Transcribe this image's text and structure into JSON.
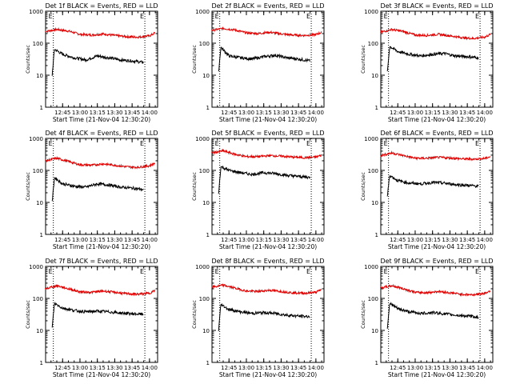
{
  "window": {
    "background": "#ffffff"
  },
  "colors": {
    "events": "#000000",
    "lld": "#e00000",
    "axis": "#000000"
  },
  "chart_data": [
    {
      "type": "line",
      "title": "Det 1f BLACK = Events, RED = LLD",
      "xlabel": "Start Time (21-Nov-04 12:30:20)",
      "ylabel": "Counts/sec",
      "xlim": [
        "12:30:20",
        "14:07:00"
      ],
      "ylim": [
        1,
        1000
      ],
      "yscale": "log",
      "x_ticks": [
        "12:45",
        "13:00",
        "13:15",
        "13:30",
        "13:45",
        "14:00"
      ],
      "y_ticks": [
        "1",
        "10",
        "100",
        "1000"
      ],
      "markers": [
        {
          "label": "E",
          "time": "12:37"
        },
        {
          "label": "E",
          "time": "13:56"
        }
      ],
      "series": [
        {
          "name": "LLD",
          "color": "#e00000",
          "x": [
            "12:30",
            "12:40",
            "12:50",
            "13:00",
            "13:10",
            "13:20",
            "13:30",
            "13:40",
            "13:50",
            "14:00",
            "14:05"
          ],
          "values": [
            230,
            270,
            240,
            190,
            180,
            195,
            175,
            160,
            155,
            170,
            210
          ]
        },
        {
          "name": "Events",
          "color": "#000000",
          "x": [
            "12:36",
            "12:38",
            "12:45",
            "12:55",
            "13:05",
            "13:15",
            "13:25",
            "13:35",
            "13:45",
            "13:55"
          ],
          "values": [
            10,
            65,
            45,
            35,
            30,
            40,
            35,
            30,
            28,
            25
          ]
        }
      ]
    },
    {
      "type": "line",
      "title": "Det 2f BLACK = Events, RED = LLD",
      "xlabel": "Start Time (21-Nov-04 12:30:20)",
      "ylabel": "Counts/sec",
      "xlim": [
        "12:30:20",
        "14:07:00"
      ],
      "ylim": [
        1,
        1000
      ],
      "yscale": "log",
      "x_ticks": [
        "12:45",
        "13:00",
        "13:15",
        "13:30",
        "13:45",
        "14:00"
      ],
      "y_ticks": [
        "1",
        "10",
        "100",
        "1000"
      ],
      "markers": [
        {
          "label": "E",
          "time": "12:37"
        },
        {
          "label": "E",
          "time": "13:56"
        }
      ],
      "series": [
        {
          "name": "LLD",
          "color": "#e00000",
          "x": [
            "12:30",
            "12:40",
            "12:50",
            "13:00",
            "13:10",
            "13:20",
            "13:30",
            "13:40",
            "13:50",
            "14:00",
            "14:05"
          ],
          "values": [
            250,
            290,
            260,
            210,
            200,
            220,
            195,
            180,
            175,
            185,
            220
          ]
        },
        {
          "name": "Events",
          "color": "#000000",
          "x": [
            "12:36",
            "12:38",
            "12:45",
            "12:55",
            "13:05",
            "13:15",
            "13:25",
            "13:35",
            "13:45",
            "13:55"
          ],
          "values": [
            12,
            75,
            40,
            35,
            32,
            38,
            42,
            35,
            32,
            28
          ]
        }
      ]
    },
    {
      "type": "line",
      "title": "Det 3f BLACK = Events, RED = LLD",
      "xlabel": "Start Time (21-Nov-04 12:30:20)",
      "ylabel": "Counts/sec",
      "xlim": [
        "12:30:20",
        "14:07:00"
      ],
      "ylim": [
        1,
        1000
      ],
      "yscale": "log",
      "x_ticks": [
        "12:45",
        "13:00",
        "13:15",
        "13:30",
        "13:45",
        "14:00"
      ],
      "y_ticks": [
        "1",
        "10",
        "100",
        "1000"
      ],
      "markers": [
        {
          "label": "E",
          "time": "12:37"
        },
        {
          "label": "E",
          "time": "13:56"
        }
      ],
      "series": [
        {
          "name": "LLD",
          "color": "#e00000",
          "x": [
            "12:30",
            "12:40",
            "12:50",
            "13:00",
            "13:10",
            "13:20",
            "13:30",
            "13:40",
            "13:50",
            "14:00",
            "14:05"
          ],
          "values": [
            220,
            270,
            230,
            180,
            175,
            190,
            170,
            150,
            140,
            155,
            190
          ]
        },
        {
          "name": "Events",
          "color": "#000000",
          "x": [
            "12:36",
            "12:38",
            "12:45",
            "12:55",
            "13:05",
            "13:15",
            "13:25",
            "13:35",
            "13:45",
            "13:55"
          ],
          "values": [
            12,
            80,
            55,
            45,
            40,
            45,
            48,
            40,
            38,
            35
          ]
        }
      ]
    },
    {
      "type": "line",
      "title": "Det 4f BLACK = Events, RED = LLD",
      "xlabel": "Start Time (21-Nov-04 12:30:20)",
      "ylabel": "Counts/sec",
      "xlim": [
        "12:30:20",
        "14:07:00"
      ],
      "ylim": [
        1,
        1000
      ],
      "yscale": "log",
      "x_ticks": [
        "12:45",
        "13:00",
        "13:15",
        "13:30",
        "13:45",
        "14:00"
      ],
      "y_ticks": [
        "1",
        "10",
        "100",
        "1000"
      ],
      "markers": [
        {
          "label": "E",
          "time": "12:37"
        },
        {
          "label": "E",
          "time": "13:56"
        }
      ],
      "series": [
        {
          "name": "LLD",
          "color": "#e00000",
          "x": [
            "12:30",
            "12:40",
            "12:50",
            "13:00",
            "13:10",
            "13:20",
            "13:30",
            "13:40",
            "13:50",
            "14:00",
            "14:05"
          ],
          "values": [
            200,
            240,
            190,
            150,
            145,
            160,
            145,
            130,
            125,
            140,
            170
          ]
        },
        {
          "name": "Events",
          "color": "#000000",
          "x": [
            "12:36",
            "12:38",
            "12:45",
            "12:55",
            "13:05",
            "13:15",
            "13:25",
            "13:35",
            "13:45",
            "13:55"
          ],
          "values": [
            10,
            60,
            38,
            32,
            30,
            38,
            35,
            30,
            28,
            25
          ]
        }
      ]
    },
    {
      "type": "line",
      "title": "Det 5f BLACK = Events, RED = LLD",
      "xlabel": "Start Time (21-Nov-04 12:30:20)",
      "ylabel": "Counts/sec",
      "xlim": [
        "12:30:20",
        "14:07:00"
      ],
      "ylim": [
        1,
        1000
      ],
      "yscale": "log",
      "x_ticks": [
        "12:45",
        "13:00",
        "13:15",
        "13:30",
        "13:45",
        "14:00"
      ],
      "y_ticks": [
        "1",
        "10",
        "100",
        "1000"
      ],
      "markers": [
        {
          "label": "E",
          "time": "12:37"
        },
        {
          "label": "E",
          "time": "13:56"
        }
      ],
      "series": [
        {
          "name": "LLD",
          "color": "#e00000",
          "x": [
            "12:30",
            "12:40",
            "12:50",
            "13:00",
            "13:10",
            "13:20",
            "13:30",
            "13:40",
            "13:50",
            "14:00",
            "14:05"
          ],
          "values": [
            350,
            410,
            320,
            270,
            270,
            290,
            280,
            260,
            250,
            260,
            300
          ]
        },
        {
          "name": "Events",
          "color": "#000000",
          "x": [
            "12:36",
            "12:38",
            "12:45",
            "12:55",
            "13:05",
            "13:15",
            "13:25",
            "13:35",
            "13:45",
            "13:55"
          ],
          "values": [
            18,
            130,
            100,
            85,
            75,
            85,
            80,
            70,
            65,
            60
          ]
        }
      ]
    },
    {
      "type": "line",
      "title": "Det 6f BLACK = Events, RED = LLD",
      "xlabel": "Start Time (21-Nov-04 12:30:20)",
      "ylabel": "Counts/sec",
      "xlim": [
        "12:30:20",
        "14:07:00"
      ],
      "ylim": [
        1,
        1000
      ],
      "yscale": "log",
      "x_ticks": [
        "12:45",
        "13:00",
        "13:15",
        "13:30",
        "13:45",
        "14:00"
      ],
      "y_ticks": [
        "1",
        "10",
        "100",
        "1000"
      ],
      "markers": [
        {
          "label": "E",
          "time": "12:37"
        },
        {
          "label": "E",
          "time": "13:56"
        }
      ],
      "series": [
        {
          "name": "LLD",
          "color": "#e00000",
          "x": [
            "12:30",
            "12:40",
            "12:50",
            "13:00",
            "13:10",
            "13:20",
            "13:30",
            "13:40",
            "13:50",
            "14:00",
            "14:05"
          ],
          "values": [
            290,
            350,
            290,
            240,
            240,
            255,
            245,
            230,
            225,
            235,
            270
          ]
        },
        {
          "name": "Events",
          "color": "#000000",
          "x": [
            "12:36",
            "12:38",
            "12:45",
            "12:55",
            "13:05",
            "13:15",
            "13:25",
            "13:35",
            "13:45",
            "13:55"
          ],
          "values": [
            15,
            70,
            48,
            40,
            38,
            42,
            40,
            36,
            34,
            32
          ]
        }
      ]
    },
    {
      "type": "line",
      "title": "Det 7f BLACK = Events, RED = LLD",
      "xlabel": "Start Time (21-Nov-04 12:30:20)",
      "ylabel": "Counts/sec",
      "xlim": [
        "12:30:20",
        "14:07:00"
      ],
      "ylim": [
        1,
        1000
      ],
      "yscale": "log",
      "x_ticks": [
        "12:45",
        "13:00",
        "13:15",
        "13:30",
        "13:45",
        "14:00"
      ],
      "y_ticks": [
        "1",
        "10",
        "100",
        "1000"
      ],
      "markers": [
        {
          "label": "E",
          "time": "12:37"
        },
        {
          "label": "E",
          "time": "13:56"
        }
      ],
      "series": [
        {
          "name": "LLD",
          "color": "#e00000",
          "x": [
            "12:30",
            "12:40",
            "12:50",
            "13:00",
            "13:10",
            "13:20",
            "13:30",
            "13:40",
            "13:50",
            "14:00",
            "14:05"
          ],
          "values": [
            200,
            250,
            200,
            160,
            155,
            170,
            155,
            140,
            135,
            145,
            180
          ]
        },
        {
          "name": "Events",
          "color": "#000000",
          "x": [
            "12:36",
            "12:38",
            "12:45",
            "12:55",
            "13:05",
            "13:15",
            "13:25",
            "13:35",
            "13:45",
            "13:55"
          ],
          "values": [
            12,
            70,
            50,
            42,
            38,
            40,
            38,
            35,
            33,
            32
          ]
        }
      ]
    },
    {
      "type": "line",
      "title": "Det 8f BLACK = Events, RED = LLD",
      "xlabel": "Start Time (21-Nov-04 12:30:20)",
      "ylabel": "Counts/sec",
      "xlim": [
        "12:30:20",
        "14:07:00"
      ],
      "ylim": [
        1,
        1000
      ],
      "yscale": "log",
      "x_ticks": [
        "12:45",
        "13:00",
        "13:15",
        "13:30",
        "13:45",
        "14:00"
      ],
      "y_ticks": [
        "1",
        "10",
        "100",
        "1000"
      ],
      "markers": [
        {
          "label": "E",
          "time": "12:37"
        },
        {
          "label": "E",
          "time": "13:56"
        }
      ],
      "series": [
        {
          "name": "LLD",
          "color": "#e00000",
          "x": [
            "12:30",
            "12:40",
            "12:50",
            "13:00",
            "13:10",
            "13:20",
            "13:30",
            "13:40",
            "13:50",
            "14:00",
            "14:05"
          ],
          "values": [
            220,
            260,
            210,
            170,
            165,
            180,
            165,
            150,
            145,
            155,
            190
          ]
        },
        {
          "name": "Events",
          "color": "#000000",
          "x": [
            "12:36",
            "12:38",
            "12:45",
            "12:55",
            "13:05",
            "13:15",
            "13:25",
            "13:35",
            "13:45",
            "13:55"
          ],
          "values": [
            10,
            65,
            45,
            38,
            34,
            36,
            34,
            30,
            28,
            27
          ]
        }
      ]
    },
    {
      "type": "line",
      "title": "Det 9f BLACK = Events, RED = LLD",
      "xlabel": "Start Time (21-Nov-04 12:30:20)",
      "ylabel": "Counts/sec",
      "xlim": [
        "12:30:20",
        "14:07:00"
      ],
      "ylim": [
        1,
        1000
      ],
      "yscale": "log",
      "x_ticks": [
        "12:45",
        "13:00",
        "13:15",
        "13:30",
        "13:45",
        "14:00"
      ],
      "y_ticks": [
        "1",
        "10",
        "100",
        "1000"
      ],
      "markers": [
        {
          "label": "E",
          "time": "12:37"
        },
        {
          "label": "E",
          "time": "13:56"
        }
      ],
      "series": [
        {
          "name": "LLD",
          "color": "#e00000",
          "x": [
            "12:30",
            "12:40",
            "12:50",
            "13:00",
            "13:10",
            "13:20",
            "13:30",
            "13:40",
            "13:50",
            "14:00",
            "14:05"
          ],
          "values": [
            210,
            250,
            200,
            155,
            150,
            165,
            150,
            135,
            130,
            145,
            175
          ]
        },
        {
          "name": "Events",
          "color": "#000000",
          "x": [
            "12:36",
            "12:38",
            "12:45",
            "12:55",
            "13:05",
            "13:15",
            "13:25",
            "13:35",
            "13:45",
            "13:55"
          ],
          "values": [
            12,
            70,
            48,
            38,
            34,
            36,
            33,
            30,
            28,
            26
          ]
        }
      ]
    }
  ]
}
